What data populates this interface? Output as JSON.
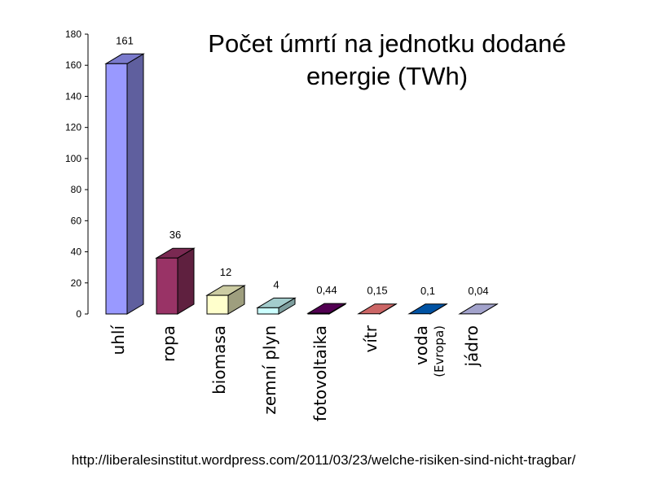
{
  "chart_data": {
    "type": "bar",
    "title": "Počet úmrtí na jednotku dodané energie (TWh)",
    "categories": [
      "uhlí",
      "ropa",
      "biomasa",
      "zemní plyn",
      "fotovoltaika",
      "vítr",
      "voda",
      "jádro"
    ],
    "category_sublabels": [
      "",
      "",
      "",
      "",
      "",
      "",
      "(Evropa)",
      ""
    ],
    "values": [
      161,
      36,
      12,
      4,
      0.44,
      0.15,
      0.1,
      0.04
    ],
    "value_labels": [
      "161",
      "36",
      "12",
      "4",
      "0,44",
      "0,15",
      "0,1",
      "0,04"
    ],
    "colors": [
      "#9999ff",
      "#993366",
      "#ffffcc",
      "#ccffff",
      "#660066",
      "#ff8080",
      "#0066cc",
      "#ccccff"
    ],
    "ylim": [
      0,
      180
    ],
    "yticks": [
      "0",
      "20",
      "40",
      "60",
      "80",
      "100",
      "120",
      "140",
      "160",
      "180"
    ],
    "xlabel": "",
    "ylabel": "",
    "grid": false,
    "bar_style": "3d"
  },
  "source_url": "http://liberalesinstitut.wordpress.com/2011/03/23/welche-risiken-sind-nicht-tragbar/"
}
